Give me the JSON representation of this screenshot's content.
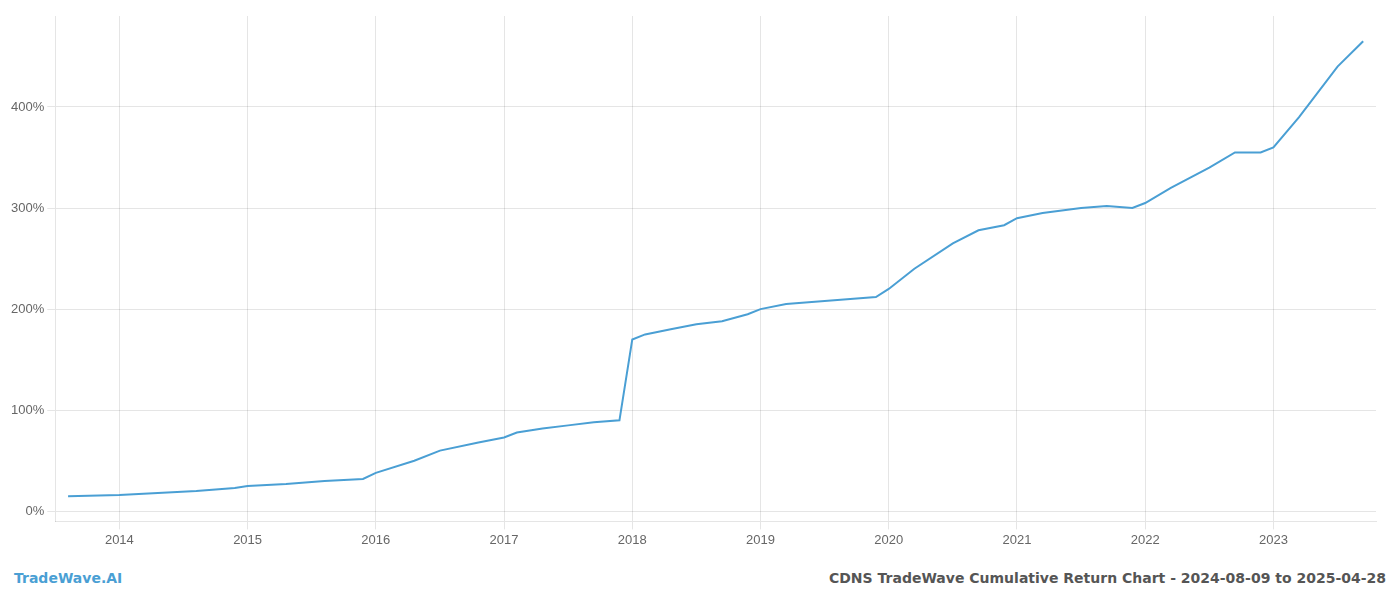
{
  "chart_data": {
    "type": "line",
    "title": "CDNS TradeWave Cumulative Return Chart - 2024-08-09 to 2025-04-28",
    "annotations": [
      "TradeWave.AI"
    ],
    "x": [
      2013.6,
      2014.0,
      2014.3,
      2014.6,
      2014.9,
      2015.0,
      2015.3,
      2015.6,
      2015.9,
      2016.0,
      2016.3,
      2016.5,
      2016.8,
      2017.0,
      2017.1,
      2017.3,
      2017.5,
      2017.7,
      2017.9,
      2018.0,
      2018.1,
      2018.3,
      2018.5,
      2018.7,
      2018.9,
      2019.0,
      2019.2,
      2019.5,
      2019.7,
      2019.9,
      2020.0,
      2020.2,
      2020.5,
      2020.7,
      2020.9,
      2021.0,
      2021.2,
      2021.5,
      2021.7,
      2021.9,
      2022.0,
      2022.2,
      2022.5,
      2022.7,
      2022.9,
      2023.0,
      2023.2,
      2023.5,
      2023.7
    ],
    "values": [
      15,
      16,
      18,
      20,
      23,
      25,
      27,
      30,
      32,
      38,
      50,
      60,
      68,
      73,
      78,
      82,
      85,
      88,
      90,
      170,
      175,
      180,
      185,
      188,
      195,
      200,
      205,
      208,
      210,
      212,
      220,
      240,
      265,
      278,
      283,
      290,
      295,
      300,
      302,
      300,
      305,
      320,
      340,
      355,
      355,
      360,
      390,
      440,
      465
    ],
    "color": "#4a9fd4",
    "xlim": [
      2013.5,
      2023.8
    ],
    "xticks": [
      2014,
      2015,
      2016,
      2017,
      2018,
      2019,
      2020,
      2021,
      2022,
      2023
    ],
    "ylim": [
      -10,
      490
    ],
    "yticks": [
      {
        "value": 0,
        "label": "0%"
      },
      {
        "value": 100,
        "label": "100%"
      },
      {
        "value": 200,
        "label": "200%"
      },
      {
        "value": 300,
        "label": "300%"
      },
      {
        "value": 400,
        "label": "400%"
      }
    ],
    "grid": true
  }
}
